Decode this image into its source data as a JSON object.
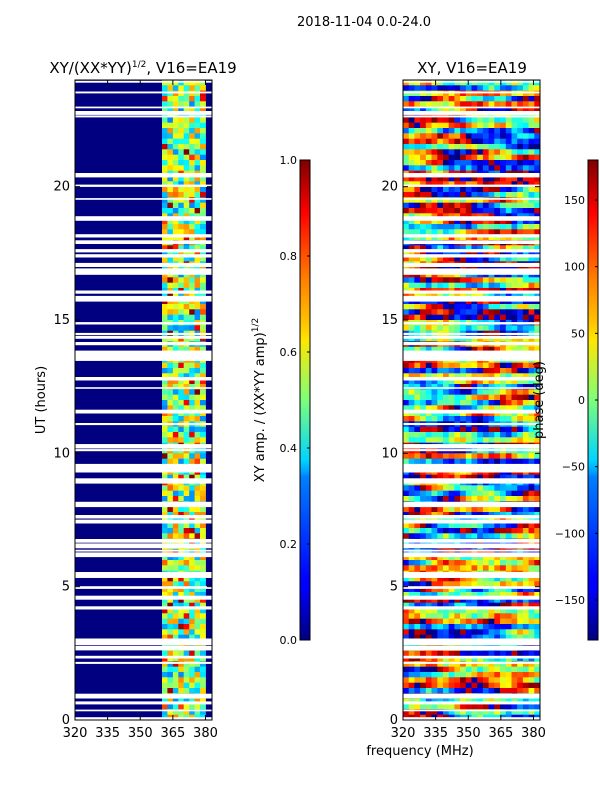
{
  "figure": {
    "suptitle": "2018-11-04 0.0-24.0",
    "shared_xlabel": "frequency (MHz)"
  },
  "colormap": "jet",
  "chart_data": [
    {
      "type": "heatmap",
      "title": "XY/(XX*YY)",
      "title_exponent": "1/2",
      "title_suffix": ", V16=EA19",
      "ylabel": "UT (hours)",
      "xlim": [
        320,
        383
      ],
      "ylim": [
        0,
        24
      ],
      "xticks": [
        320,
        335,
        350,
        365,
        380
      ],
      "yticks": [
        0,
        5,
        10,
        15,
        20
      ],
      "active_band_mhz": [
        360,
        380
      ],
      "background_value": 0.0,
      "colorbar": {
        "label": "XY amp. / (XX*YY amp)",
        "label_exponent": "1/2",
        "range": [
          0.0,
          1.0
        ],
        "ticks": [
          0.0,
          0.2,
          0.4,
          0.6,
          0.8,
          1.0
        ],
        "tick_labels": [
          "0.0",
          "0.2",
          "0.4",
          "0.6",
          "0.8",
          "1.0"
        ]
      }
    },
    {
      "type": "heatmap",
      "title": "XY, V16=EA19",
      "xlim": [
        320,
        383
      ],
      "ylim": [
        0,
        24
      ],
      "xticks": [
        320,
        335,
        350,
        365,
        380
      ],
      "yticks": [
        0,
        5,
        10,
        15,
        20
      ],
      "colorbar": {
        "label": "phase (deg)",
        "range": [
          -180,
          180
        ],
        "ticks": [
          -150,
          -100,
          -50,
          0,
          50,
          100,
          150
        ],
        "tick_labels": [
          "−150",
          "−100",
          "−50",
          "0",
          "50",
          "100",
          "150"
        ]
      }
    }
  ]
}
